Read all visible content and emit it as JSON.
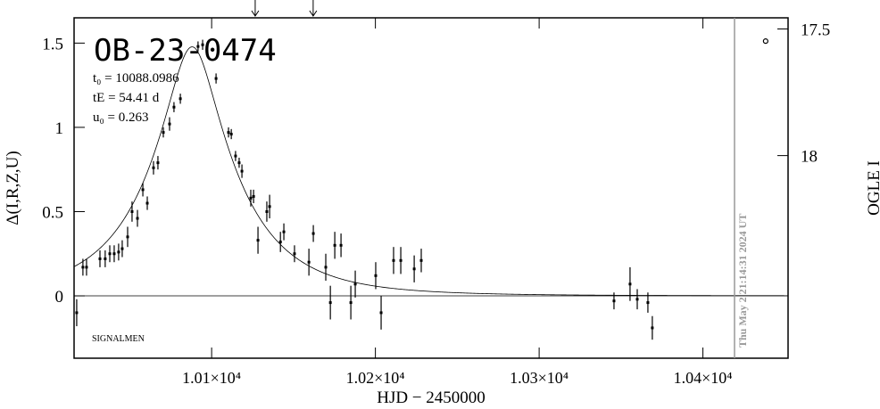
{
  "chart_data": {
    "type": "errorbar",
    "title": "OB-23-0474",
    "xlabel": "HJD − 2450000",
    "ylabel": "Δ(I,R,Z,U)",
    "y2label": "OGLE I",
    "corner_note": "SIGNALMEN",
    "model_labels": [
      "t₀ = 10088.0986",
      "tE = 54.41 d",
      "u₀ = 0.263"
    ],
    "model": {
      "t0": 10088.0986,
      "tE": 54.41,
      "u0": 0.263
    },
    "date_label": "Thu May  2 21:14:31 2024 UT",
    "date_line_x": 10419.3,
    "arrows_x": [
      10126.6,
      10162
    ],
    "xlim": [
      10016,
      10452
    ],
    "xticks": [
      {
        "value": 10100,
        "label": "1.01×10⁴"
      },
      {
        "value": 10200,
        "label": "1.02×10⁴"
      },
      {
        "value": 10300,
        "label": "1.03×10⁴"
      },
      {
        "value": 10400,
        "label": "1.04×10⁴"
      }
    ],
    "ylim": [
      -0.37,
      1.65
    ],
    "yticks": [
      0,
      0.5,
      1,
      1.5
    ],
    "y2lim": [
      18.8,
      17.456
    ],
    "y2ticks": [
      17.5,
      18
    ],
    "color": "#000000",
    "x": [
      10017.6,
      10021.4,
      10023.6,
      10031.8,
      10035,
      10037.8,
      10040.5,
      10043.2,
      10045.4,
      10048.7,
      10051.4,
      10054.7,
      10058,
      10060.7,
      10064.5,
      10067.2,
      10070.5,
      10074.3,
      10077,
      10080.9,
      10091.7,
      10094.5,
      10102.7,
      10110.3,
      10112,
      10114.6,
      10116.8,
      10118.5,
      10123.9,
      10125.6,
      10128.3,
      10133.7,
      10135.4,
      10142,
      10144.1,
      10150.6,
      10159.4,
      10162.1,
      10169.7,
      10172.5,
      10175.2,
      10179,
      10185,
      10187.7,
      10200.2,
      10203.5,
      10211.1,
      10215.5,
      10223.7,
      10228,
      10345.7,
      10355.5,
      10359.9,
      10366.4,
      10369.1
    ],
    "values": [
      -0.1,
      0.17,
      0.17,
      0.22,
      0.22,
      0.25,
      0.25,
      0.26,
      0.28,
      0.35,
      0.5,
      0.46,
      0.63,
      0.55,
      0.76,
      0.79,
      0.97,
      1.02,
      1.12,
      1.17,
      1.48,
      1.49,
      1.29,
      0.97,
      0.96,
      0.83,
      0.79,
      0.74,
      0.58,
      0.59,
      0.33,
      0.5,
      0.53,
      0.32,
      0.38,
      0.25,
      0.2,
      0.37,
      0.17,
      -0.04,
      0.3,
      0.3,
      -0.04,
      0.07,
      0.12,
      -0.1,
      0.21,
      0.21,
      0.16,
      0.21,
      -0.03,
      0.07,
      -0.02,
      -0.04,
      -0.19
    ],
    "errors": [
      0.08,
      0.05,
      0.05,
      0.05,
      0.05,
      0.05,
      0.05,
      0.05,
      0.05,
      0.06,
      0.06,
      0.05,
      0.04,
      0.04,
      0.04,
      0.04,
      0.03,
      0.04,
      0.03,
      0.03,
      0.03,
      0.03,
      0.03,
      0.03,
      0.03,
      0.03,
      0.03,
      0.04,
      0.05,
      0.04,
      0.08,
      0.06,
      0.07,
      0.06,
      0.05,
      0.05,
      0.08,
      0.05,
      0.08,
      0.1,
      0.08,
      0.07,
      0.1,
      0.08,
      0.08,
      0.1,
      0.08,
      0.08,
      0.08,
      0.07,
      0.05,
      0.1,
      0.06,
      0.06,
      0.07
    ],
    "series2": {
      "axis": "y2",
      "x": [
        10438.3
      ],
      "values": [
        17.548
      ]
    }
  }
}
